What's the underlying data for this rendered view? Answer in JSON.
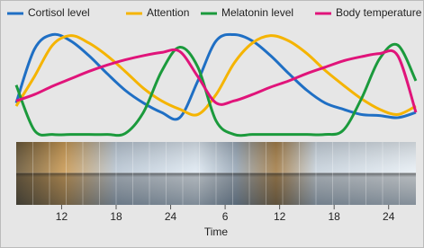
{
  "chart_data": {
    "type": "line",
    "xlabel": "Time",
    "x": [
      7,
      9,
      11,
      13,
      15,
      17,
      19,
      21,
      23,
      25,
      27,
      29,
      31,
      33,
      35,
      37,
      39,
      41,
      43,
      45,
      47,
      49,
      51
    ],
    "xlim": [
      7,
      51
    ],
    "xticks": [
      12,
      18,
      24,
      {
        "value": 30,
        "label": "6"
      },
      {
        "value": 36,
        "label": "12"
      },
      {
        "value": 42,
        "label": "18"
      },
      {
        "value": 48,
        "label": "24"
      }
    ],
    "ylim": [
      0,
      100
    ],
    "legend": "top",
    "series": [
      {
        "name": "Cortisol level",
        "color": "#1f6fc4",
        "values": [
          32,
          83,
          97,
          91,
          77,
          60,
          44,
          32,
          23,
          18,
          53,
          91,
          97,
          91,
          77,
          60,
          44,
          32,
          26,
          21,
          20,
          18,
          23
        ]
      },
      {
        "name": "Attention",
        "color": "#f5b400",
        "values": [
          29,
          57,
          87,
          96,
          89,
          77,
          62,
          46,
          34,
          26,
          21,
          40,
          70,
          89,
          96,
          91,
          79,
          63,
          49,
          36,
          26,
          21,
          29
        ]
      },
      {
        "name": "Melatonin level",
        "color": "#1b9a3c",
        "values": [
          49,
          6,
          2,
          2,
          2,
          2,
          3,
          23,
          62,
          85,
          66,
          15,
          2,
          2,
          2,
          2,
          2,
          2,
          6,
          36,
          74,
          87,
          53
        ]
      },
      {
        "name": "Body temperature",
        "color": "#e0147a",
        "values": [
          34,
          40,
          48,
          55,
          62,
          68,
          73,
          77,
          80,
          81,
          57,
          32,
          34,
          40,
          47,
          53,
          60,
          66,
          72,
          76,
          79,
          77,
          23
        ]
      }
    ]
  }
}
